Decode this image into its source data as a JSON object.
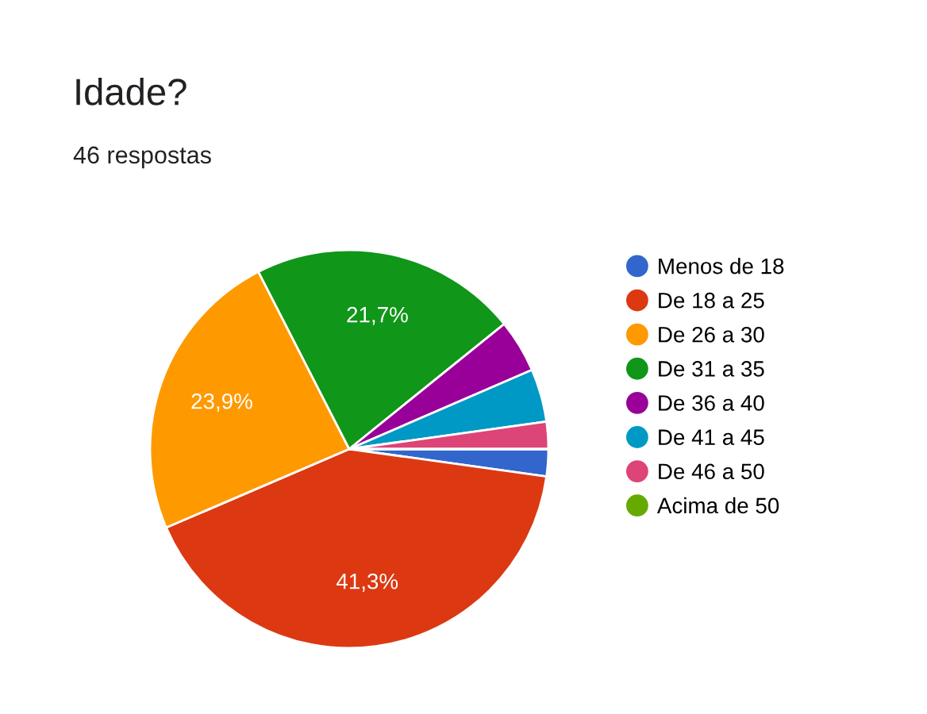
{
  "chart_data": {
    "type": "pie",
    "title": "Idade?",
    "subtitle": "46 respostas",
    "categories": [
      "Menos de 18",
      "De 18 a 25",
      "De 26 a 30",
      "De 31 a 35",
      "De 36 a 40",
      "De 41 a 45",
      "De 46 a 50",
      "Acima de 50"
    ],
    "values": [
      2.2,
      41.3,
      23.9,
      21.7,
      4.3,
      4.3,
      2.2,
      0
    ],
    "colors": [
      "#3366cc",
      "#dc3912",
      "#ff9900",
      "#109618",
      "#990099",
      "#0099c6",
      "#dd4477",
      "#66aa00"
    ],
    "value_labels": [
      null,
      "41,3%",
      "23,9%",
      "21,7%",
      null,
      null,
      null,
      null
    ],
    "legend": "right"
  }
}
